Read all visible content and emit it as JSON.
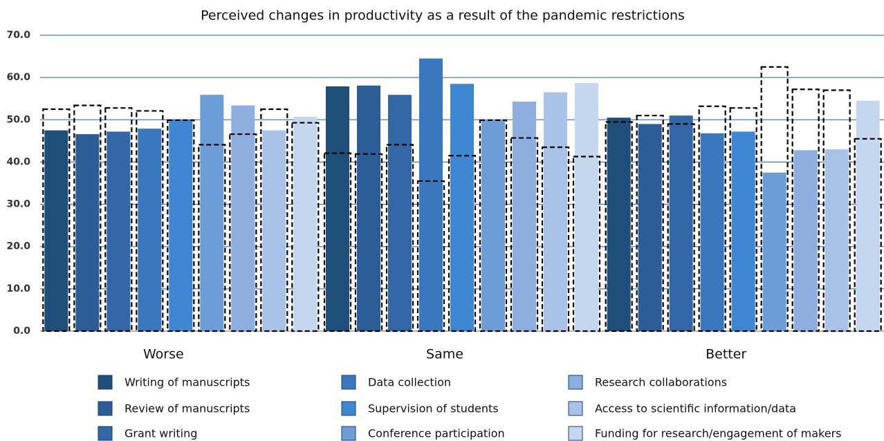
{
  "chart_data": {
    "type": "bar",
    "title": "Perceived changes in productivity as a result of the pandemic restrictions",
    "categories": [
      "Worse",
      "Same",
      "Better"
    ],
    "ylim": [
      0,
      70
    ],
    "yticks": [
      {
        "value": 0,
        "label": "0.0"
      },
      {
        "value": 10,
        "label": "10.0"
      },
      {
        "value": 20,
        "label": "20.0"
      },
      {
        "value": 30,
        "label": "30.0"
      },
      {
        "value": 40,
        "label": "40.0"
      },
      {
        "value": 50,
        "label": "50.0"
      },
      {
        "value": 60,
        "label": "60.0"
      },
      {
        "value": 70,
        "label": "70.0"
      }
    ],
    "grid": true,
    "series": [
      {
        "name": "Writing of manuscripts",
        "color": "#1f4e79",
        "values": [
          47.5,
          57.9,
          50.5
        ],
        "outline_values": [
          52.5,
          42.1,
          49.5
        ]
      },
      {
        "name": "Review of manuscripts",
        "color": "#2c5d96",
        "values": [
          46.6,
          58.1,
          49.0
        ],
        "outline_values": [
          53.4,
          41.9,
          51.0
        ]
      },
      {
        "name": "Grant writing",
        "color": "#3367a6",
        "values": [
          47.2,
          55.9,
          51.0
        ],
        "outline_values": [
          52.8,
          44.1,
          49.0
        ]
      },
      {
        "name": "Data collection",
        "color": "#3a77bd",
        "values": [
          47.9,
          64.5,
          46.8
        ],
        "outline_values": [
          52.1,
          35.5,
          53.2
        ]
      },
      {
        "name": "Supervision of students",
        "color": "#3f87d3",
        "values": [
          50.1,
          58.5,
          47.2
        ],
        "outline_values": [
          49.9,
          41.5,
          52.8
        ]
      },
      {
        "name": "Conference participation",
        "color": "#6c9dd6",
        "values": [
          55.9,
          50.1,
          37.5
        ],
        "outline_values": [
          44.1,
          49.9,
          62.5
        ]
      },
      {
        "name": "Research collaborations",
        "color": "#8eaedf",
        "values": [
          53.4,
          54.3,
          42.8
        ],
        "outline_values": [
          46.6,
          45.7,
          57.2
        ]
      },
      {
        "name": "Access to scientific information/data",
        "color": "#a9c3e8",
        "values": [
          47.5,
          56.5,
          43.0
        ],
        "outline_values": [
          52.5,
          43.5,
          57.0
        ]
      },
      {
        "name": "Funding for research/engagement of makers",
        "color": "#c5d7ef",
        "values": [
          50.7,
          58.7,
          54.5
        ],
        "outline_values": [
          49.3,
          41.3,
          45.5
        ]
      }
    ]
  }
}
